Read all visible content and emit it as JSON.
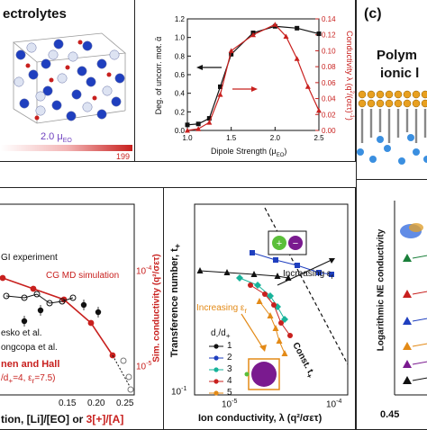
{
  "top_left": {
    "title_fragment": "ectrolytes",
    "dipole_value": "2.0 μ",
    "dipole_sub": "EO",
    "colorbar_max": "199"
  },
  "top_plot": {
    "ylabel_left": "Deg. of uncorr. mot. ᾱ",
    "ylabel_right_prefix": "Conductivity λ (q",
    "ylabel_right_suffix": "/(σετ)",
    "ylabel_right_sup1": "2",
    "ylabel_right_sup2": "-1",
    "xlabel": "Dipole Strength (μ",
    "xlabel_sub": "EO",
    "xlabel_end": ")",
    "left_ticks": [
      "0.0",
      "0.2",
      "0.4",
      "0.6",
      "0.8",
      "1.0",
      "1.2"
    ],
    "right_ticks": [
      "0.00",
      "0.02",
      "0.04",
      "0.06",
      "0.08",
      "0.10",
      "0.12",
      "0.14"
    ],
    "x_ticks": [
      "1.0",
      "1.5",
      "2.0",
      "2.5"
    ]
  },
  "right_panel": {
    "label": "(c)",
    "title_line1": "Polym",
    "title_line2": "ionic l",
    "ylabel": "Logarithmic NE conductivity",
    "x_tick": "0.45"
  },
  "bottom_left": {
    "legend_exp": "GI experiment",
    "legend_cgmd": "CG MD simulation",
    "ref1": "esko et al.",
    "ref2": "ongcopa et al.",
    "ref3": "nen and Hall",
    "param": "/d",
    "param_rest": "=4, ε",
    "param_end": "=7.5)",
    "ylabel": "Sim. conductivity (q²/σετ)",
    "y_tick_hi": "10",
    "y_tick_hi_exp": "-4",
    "y_tick_lo": "10",
    "y_tick_lo_exp": "-5",
    "x_ticks": [
      "0.15",
      "0.20",
      "0.25"
    ],
    "xlabel_a": "tion, [Li]/[EO] or ",
    "xlabel_b": "3[+]/[A]"
  },
  "bottom_right": {
    "ylabel": "Transference number, t",
    "xlabel": "Ion conductivity, λ (q²/σετ)",
    "y_tick": "10",
    "y_tick_exp": "-1",
    "x_tick1": "10",
    "x_tick1_exp": "-5",
    "x_tick2": "10",
    "x_tick2_exp": "-4",
    "increasing_top": "Increasing ε",
    "increasing_left": "Increasing ε",
    "const_label": "Const. t",
    "legend_title": "d",
    "legend_items": [
      "1",
      "2",
      "3",
      "4",
      "5"
    ]
  },
  "colors": {
    "red": "#c8201e",
    "black": "#111111",
    "blue": "#1f3fbf",
    "teal": "#17b39a",
    "orange": "#e38a17",
    "purple": "#7a1a8f",
    "green": "#5bbf3a"
  },
  "chart_data": [
    {
      "type": "line",
      "xlabel": "Dipole Strength (μEO)",
      "ylabel": "Deg. of uncorr. mot. ᾱ",
      "xlim": [
        1.0,
        2.5
      ],
      "ylim": [
        0.0,
        1.2
      ],
      "series": [
        {
          "values_x": [
            1.0,
            1.125,
            1.25,
            1.375,
            1.5,
            1.75,
            2.0,
            2.25,
            2.5
          ],
          "values": [
            0.06,
            0.07,
            0.13,
            0.47,
            0.82,
            1.05,
            1.12,
            1.1,
            1.04
          ]
        }
      ]
    },
    {
      "type": "line",
      "xlabel": "Dipole Strength (μEO)",
      "ylabel": "Conductivity λ (q²/(σετ)⁻¹)",
      "xlim": [
        1.0,
        2.5
      ],
      "ylim": [
        0.0,
        0.14
      ],
      "series": [
        {
          "values_x": [
            1.0,
            1.125,
            1.25,
            1.375,
            1.5,
            1.75,
            2.0,
            2.125,
            2.25,
            2.375,
            2.5
          ],
          "values": [
            0.0,
            0.002,
            0.01,
            0.045,
            0.1,
            0.12,
            0.133,
            0.118,
            0.09,
            0.055,
            0.025
          ]
        }
      ]
    }
  ]
}
